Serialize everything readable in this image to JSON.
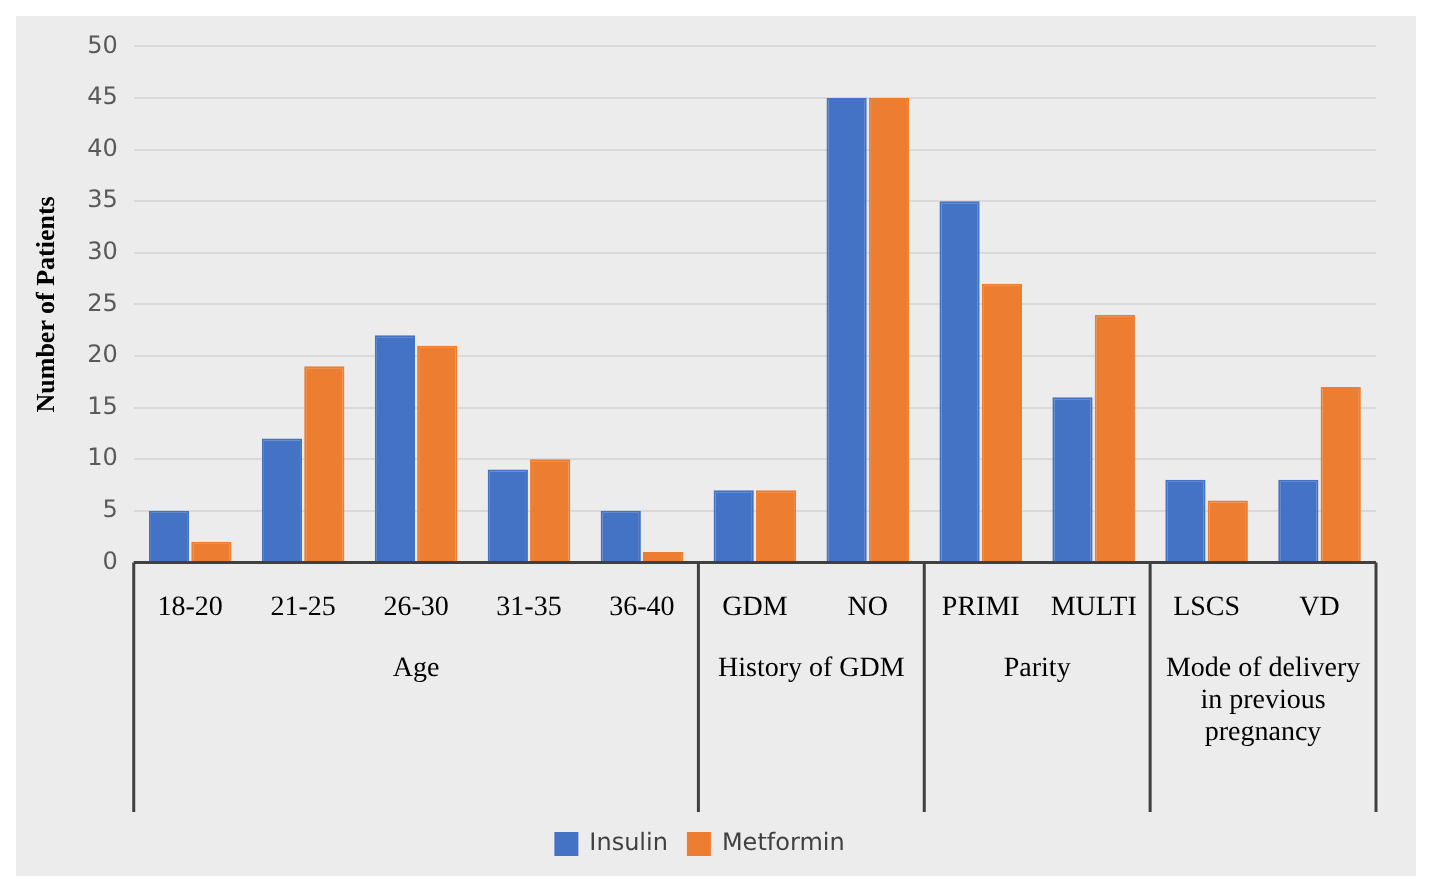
{
  "chart_data": {
    "type": "bar",
    "categories": [
      "18-20",
      "21-25",
      "26-30",
      "31-35",
      "36-40",
      "GDM",
      "NO",
      "PRIMI",
      "MULTI",
      "LSCS",
      "VD"
    ],
    "series": [
      {
        "name": "Insulin",
        "color": "#4472c4",
        "values": [
          5,
          12,
          22,
          9,
          5,
          7,
          45,
          35,
          16,
          8,
          8
        ]
      },
      {
        "name": "Metformin",
        "color": "#ed7d31",
        "values": [
          2,
          19,
          21,
          10,
          1,
          7,
          45,
          27,
          24,
          6,
          17
        ]
      }
    ],
    "ylabel": "Number of Patients",
    "ylim": [
      0,
      50
    ],
    "yticks": [
      0,
      5,
      10,
      15,
      20,
      25,
      30,
      35,
      40,
      45,
      50
    ],
    "annotations": [
      "Age",
      "History of GDM",
      "Parity",
      "Mode of delivery in previous pregnancy"
    ],
    "grid": "y",
    "legend": "bottom"
  }
}
